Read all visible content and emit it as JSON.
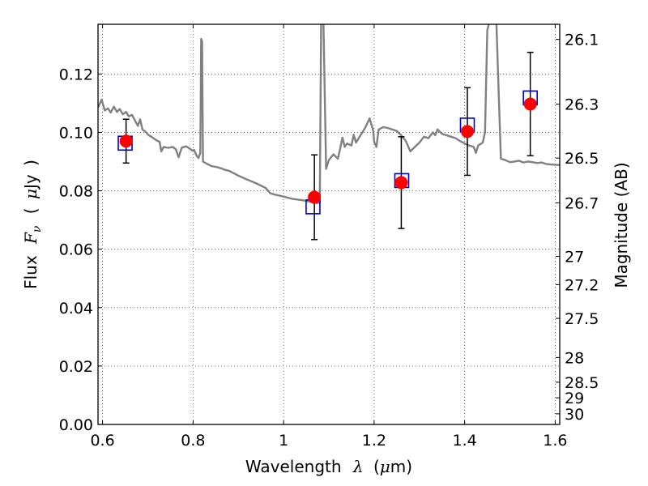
{
  "chart_data": {
    "type": "scatter",
    "xlabel_parts": {
      "prefix": "Wavelength",
      "symbol": "λ",
      "unit_open": "(",
      "unit_mu": "μ",
      "unit_rest": "m)"
    },
    "ylabel_parts": {
      "prefix": "Flux",
      "symbol_F": "F",
      "symbol_sub": "ν",
      "unit_open": "(",
      "unit_mu": "μ",
      "unit_rest": "Jy",
      "unit_close": ")"
    },
    "y2label": "Magnitude (AB)",
    "xlim": [
      0.59,
      1.61
    ],
    "ylim": [
      0.0,
      0.137
    ],
    "grid": true,
    "x_ticks": [
      {
        "value": 0.6,
        "label": "0.6"
      },
      {
        "value": 0.8,
        "label": "0.8"
      },
      {
        "value": 1.0,
        "label": "1"
      },
      {
        "value": 1.2,
        "label": "1.2"
      },
      {
        "value": 1.4,
        "label": "1.4"
      },
      {
        "value": 1.6,
        "label": "1.6"
      }
    ],
    "y_ticks": [
      {
        "value": 0.0,
        "label": "0.00"
      },
      {
        "value": 0.02,
        "label": "0.02"
      },
      {
        "value": 0.04,
        "label": "0.04"
      },
      {
        "value": 0.06,
        "label": "0.06"
      },
      {
        "value": 0.08,
        "label": "0.08"
      },
      {
        "value": 0.1,
        "label": "0.10"
      },
      {
        "value": 0.12,
        "label": "0.12"
      }
    ],
    "y2_ticks": [
      {
        "mag": 26.1,
        "label": "26.1"
      },
      {
        "mag": 26.3,
        "label": "26.3"
      },
      {
        "mag": 26.5,
        "label": "26.5"
      },
      {
        "mag": 26.7,
        "label": "26.7"
      },
      {
        "mag": 27.0,
        "label": "27"
      },
      {
        "mag": 27.2,
        "label": "27.2"
      },
      {
        "mag": 27.5,
        "label": "27.5"
      },
      {
        "mag": 28.0,
        "label": "28"
      },
      {
        "mag": 28.5,
        "label": "28.5"
      },
      {
        "mag": 29.0,
        "label": "29"
      },
      {
        "mag": 30.0,
        "label": "30"
      }
    ],
    "observed": [
      {
        "x": 0.652,
        "y": 0.097,
        "yerr": 0.0075
      },
      {
        "x": 1.068,
        "y": 0.0778,
        "yerr": 0.0145
      },
      {
        "x": 1.26,
        "y": 0.0828,
        "yerr": 0.0157
      },
      {
        "x": 1.406,
        "y": 0.1003,
        "yerr": 0.015
      },
      {
        "x": 1.545,
        "y": 0.1097,
        "yerr": 0.0177
      }
    ],
    "model_points": [
      {
        "x": 0.65,
        "y": 0.0963
      },
      {
        "x": 1.065,
        "y": 0.0745
      },
      {
        "x": 1.261,
        "y": 0.0835
      },
      {
        "x": 1.406,
        "y": 0.1025
      },
      {
        "x": 1.545,
        "y": 0.1118
      }
    ],
    "spectrum": [
      [
        0.59,
        0.1085
      ],
      [
        0.598,
        0.1112
      ],
      [
        0.605,
        0.1075
      ],
      [
        0.612,
        0.1082
      ],
      [
        0.618,
        0.1068
      ],
      [
        0.625,
        0.1088
      ],
      [
        0.632,
        0.107
      ],
      [
        0.638,
        0.108
      ],
      [
        0.645,
        0.1062
      ],
      [
        0.652,
        0.107
      ],
      [
        0.658,
        0.1055
      ],
      [
        0.665,
        0.106
      ],
      [
        0.672,
        0.104
      ],
      [
        0.678,
        0.1022
      ],
      [
        0.683,
        0.1045
      ],
      [
        0.688,
        0.101
      ],
      [
        0.695,
        0.1002
      ],
      [
        0.702,
        0.099
      ],
      [
        0.708,
        0.0985
      ],
      [
        0.714,
        0.0978
      ],
      [
        0.72,
        0.0972
      ],
      [
        0.726,
        0.0968
      ],
      [
        0.73,
        0.0935
      ],
      [
        0.735,
        0.095
      ],
      [
        0.745,
        0.0947
      ],
      [
        0.755,
        0.095
      ],
      [
        0.762,
        0.0942
      ],
      [
        0.768,
        0.0915
      ],
      [
        0.775,
        0.0948
      ],
      [
        0.785,
        0.0952
      ],
      [
        0.792,
        0.0945
      ],
      [
        0.798,
        0.0938
      ],
      [
        0.802,
        0.094
      ],
      [
        0.808,
        0.092
      ],
      [
        0.812,
        0.0912
      ],
      [
        0.816,
        0.093
      ],
      [
        0.818,
        0.132
      ],
      [
        0.82,
        0.131
      ],
      [
        0.822,
        0.09
      ],
      [
        0.83,
        0.0893
      ],
      [
        0.84,
        0.0885
      ],
      [
        0.85,
        0.0882
      ],
      [
        0.86,
        0.0878
      ],
      [
        0.87,
        0.0872
      ],
      [
        0.88,
        0.0868
      ],
      [
        0.9,
        0.0852
      ],
      [
        0.92,
        0.0838
      ],
      [
        0.94,
        0.0825
      ],
      [
        0.96,
        0.081
      ],
      [
        0.97,
        0.0792
      ],
      [
        0.98,
        0.0787
      ],
      [
        1.0,
        0.078
      ],
      [
        1.02,
        0.0772
      ],
      [
        1.04,
        0.0768
      ],
      [
        1.055,
        0.0764
      ],
      [
        1.065,
        0.076
      ],
      [
        1.075,
        0.0758
      ],
      [
        1.08,
        0.076
      ],
      [
        1.083,
        0.138
      ],
      [
        1.088,
        0.138
      ],
      [
        1.094,
        0.0875
      ],
      [
        1.1,
        0.0905
      ],
      [
        1.11,
        0.0925
      ],
      [
        1.12,
        0.091
      ],
      [
        1.125,
        0.0945
      ],
      [
        1.13,
        0.0982
      ],
      [
        1.135,
        0.095
      ],
      [
        1.14,
        0.0962
      ],
      [
        1.15,
        0.0955
      ],
      [
        1.155,
        0.0992
      ],
      [
        1.16,
        0.0965
      ],
      [
        1.17,
        0.099
      ],
      [
        1.18,
        0.1015
      ],
      [
        1.19,
        0.1048
      ],
      [
        1.198,
        0.1005
      ],
      [
        1.2,
        0.0968
      ],
      [
        1.205,
        0.095
      ],
      [
        1.21,
        0.101
      ],
      [
        1.22,
        0.1018
      ],
      [
        1.23,
        0.1015
      ],
      [
        1.24,
        0.101
      ],
      [
        1.25,
        0.1005
      ],
      [
        1.26,
        0.099
      ],
      [
        1.27,
        0.097
      ],
      [
        1.28,
        0.0935
      ],
      [
        1.29,
        0.095
      ],
      [
        1.3,
        0.0965
      ],
      [
        1.31,
        0.0985
      ],
      [
        1.32,
        0.098
      ],
      [
        1.33,
        0.1
      ],
      [
        1.335,
        0.099
      ],
      [
        1.34,
        0.101
      ],
      [
        1.35,
        0.0995
      ],
      [
        1.36,
        0.099
      ],
      [
        1.37,
        0.0985
      ],
      [
        1.38,
        0.098
      ],
      [
        1.39,
        0.097
      ],
      [
        1.4,
        0.0962
      ],
      [
        1.41,
        0.0955
      ],
      [
        1.42,
        0.095
      ],
      [
        1.425,
        0.093
      ],
      [
        1.43,
        0.0955
      ],
      [
        1.44,
        0.0965
      ],
      [
        1.445,
        0.1
      ],
      [
        1.45,
        0.135
      ],
      [
        1.455,
        0.138
      ],
      [
        1.47,
        0.138
      ],
      [
        1.475,
        0.114
      ],
      [
        1.48,
        0.091
      ],
      [
        1.49,
        0.0905
      ],
      [
        1.5,
        0.0898
      ],
      [
        1.51,
        0.09
      ],
      [
        1.52,
        0.0903
      ],
      [
        1.53,
        0.0897
      ],
      [
        1.54,
        0.09
      ],
      [
        1.55,
        0.0898
      ],
      [
        1.56,
        0.0895
      ],
      [
        1.57,
        0.0897
      ],
      [
        1.58,
        0.0892
      ],
      [
        1.59,
        0.089
      ],
      [
        1.61,
        0.0888
      ]
    ],
    "colors": {
      "spectrum": "#808080",
      "observed": "#ff0000",
      "model_box": "#0000cc",
      "errorbar": "#000000",
      "grid": "#555555"
    }
  }
}
